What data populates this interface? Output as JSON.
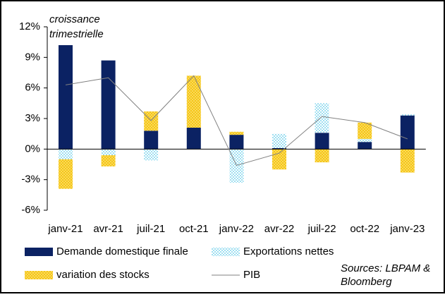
{
  "chart_data": {
    "type": "bar",
    "stacked": true,
    "annotation": [
      "croissance",
      "trimestrielle"
    ],
    "source": [
      "Sources: LBPAM &",
      "Bloomberg"
    ],
    "categories": [
      "janv-21",
      "avr-21",
      "juil-21",
      "oct-21",
      "janv-22",
      "avr-22",
      "juil-22",
      "oct-22",
      "janv-23"
    ],
    "series": [
      {
        "name": "Demande domestique finale",
        "type": "bar",
        "color": "#0b2263",
        "values": [
          10.2,
          8.7,
          1.8,
          2.1,
          1.4,
          0.1,
          1.6,
          0.7,
          3.3
        ]
      },
      {
        "name": "Exportations nettes",
        "type": "bar",
        "color": "#5bc8e8",
        "values": [
          -1.0,
          -0.6,
          -1.1,
          0.0,
          -3.3,
          1.4,
          2.9,
          0.3,
          0.1
        ]
      },
      {
        "name": "variation des stocks",
        "type": "bar",
        "color": "#f5c518",
        "values": [
          -2.9,
          -1.1,
          1.9,
          5.1,
          0.3,
          -2.0,
          -1.3,
          1.6,
          -2.3
        ]
      },
      {
        "name": "PIB",
        "type": "line",
        "color": "#808080",
        "values": [
          6.3,
          7.0,
          2.8,
          7.2,
          -1.6,
          -0.4,
          3.2,
          2.6,
          1.0
        ]
      }
    ],
    "ylim": [
      -6,
      12
    ],
    "yticks": [
      {
        "value": -6,
        "label": "-6%"
      },
      {
        "value": -3,
        "label": "-3%"
      },
      {
        "value": 0,
        "label": "0%"
      },
      {
        "value": 3,
        "label": "3%"
      },
      {
        "value": 6,
        "label": "6%"
      },
      {
        "value": 9,
        "label": "9%"
      },
      {
        "value": 12,
        "label": "12%"
      }
    ],
    "grid": false
  }
}
